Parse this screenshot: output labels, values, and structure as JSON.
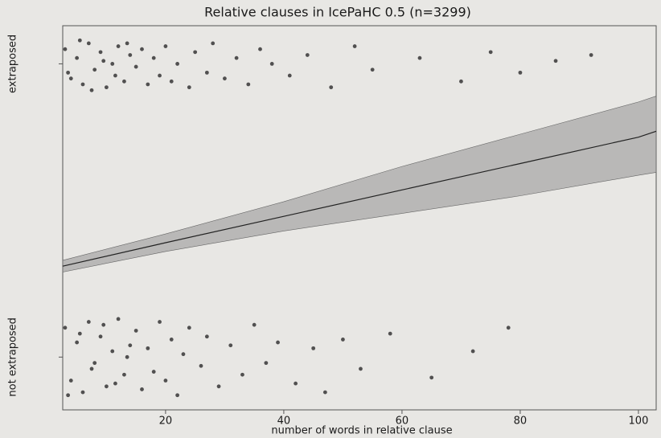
{
  "chart_data": {
    "type": "scatter",
    "title": "Relative clauses in IcePaHC 0.5 (n=3299)",
    "xlabel": "number of words in relative clause",
    "xlim": [
      2.6,
      103
    ],
    "ylim": [
      -0.18,
      1.13
    ],
    "xticks": [
      20,
      40,
      60,
      80,
      100
    ],
    "yticks": [
      {
        "value": 0,
        "label": "not extraposed"
      },
      {
        "value": 1,
        "label": "extraposed"
      }
    ],
    "color": "#2a2a2a",
    "points": {
      "x": [
        3,
        4,
        5,
        6,
        7,
        8,
        9,
        10,
        11,
        12,
        13,
        14,
        3.5,
        5.5,
        7.5,
        9.5,
        11.5,
        13.5,
        15,
        16,
        17,
        18,
        19,
        20,
        21,
        22,
        24,
        25,
        27,
        28,
        30,
        32,
        34,
        36,
        38,
        41,
        44,
        48,
        52,
        55,
        63,
        70,
        75,
        80,
        86,
        92,
        3,
        4,
        5,
        6,
        7,
        8,
        9,
        10,
        11,
        12,
        13,
        14,
        3.5,
        5.5,
        7.5,
        9.5,
        11.5,
        13.5,
        15,
        16,
        17,
        18,
        19,
        20,
        21,
        22,
        23,
        24,
        26,
        27,
        29,
        31,
        33,
        35,
        37,
        39,
        42,
        45,
        47,
        50,
        53,
        58,
        65,
        72,
        78
      ],
      "y": [
        1.05,
        0.95,
        1.02,
        0.93,
        1.07,
        0.98,
        1.04,
        0.92,
        1.0,
        1.06,
        0.94,
        1.03,
        0.97,
        1.08,
        0.91,
        1.01,
        0.96,
        1.07,
        0.99,
        1.05,
        0.93,
        1.02,
        0.96,
        1.06,
        0.94,
        1.0,
        0.92,
        1.04,
        0.97,
        1.07,
        0.95,
        1.02,
        0.93,
        1.05,
        1.0,
        0.96,
        1.03,
        0.92,
        1.06,
        0.98,
        1.02,
        0.94,
        1.04,
        0.97,
        1.01,
        1.03,
        0.1,
        -0.08,
        0.05,
        -0.12,
        0.12,
        -0.02,
        0.07,
        -0.1,
        0.02,
        0.13,
        -0.06,
        0.04,
        -0.13,
        0.08,
        -0.04,
        0.11,
        -0.09,
        0.0,
        0.09,
        -0.11,
        0.03,
        -0.05,
        0.12,
        -0.08,
        0.06,
        -0.13,
        0.01,
        0.1,
        -0.03,
        0.07,
        -0.1,
        0.04,
        -0.06,
        0.11,
        -0.02,
        0.05,
        -0.09,
        0.03,
        -0.12,
        0.06,
        -0.04,
        0.08,
        -0.07,
        0.02,
        0.1
      ]
    },
    "fit": {
      "x": [
        2.6,
        20,
        40,
        60,
        80,
        100,
        103
      ],
      "values": [
        0.31,
        0.39,
        0.48,
        0.57,
        0.66,
        0.75,
        0.77
      ],
      "lower": [
        0.29,
        0.36,
        0.43,
        0.49,
        0.55,
        0.62,
        0.63
      ],
      "upper": [
        0.33,
        0.42,
        0.53,
        0.65,
        0.76,
        0.87,
        0.89
      ]
    }
  }
}
